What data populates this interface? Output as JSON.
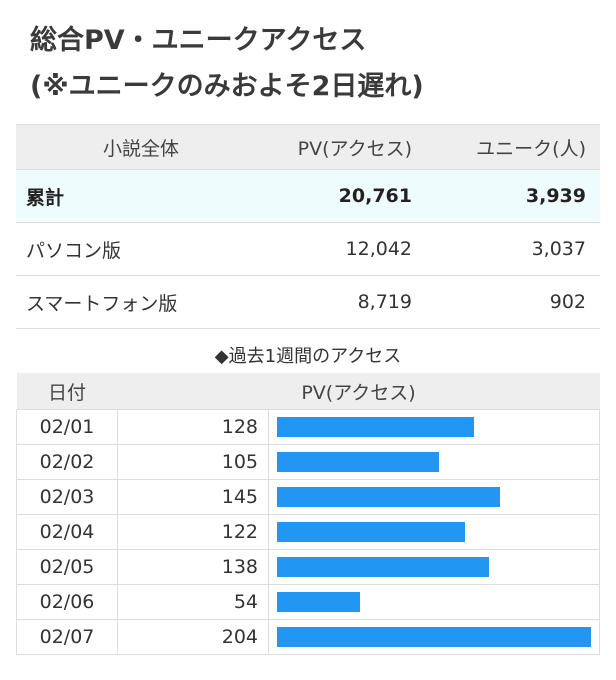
{
  "title": {
    "line1": "総合PV・ユニークアクセス",
    "line2": "(※ユニークのみおよそ2日遅れ)"
  },
  "summary": {
    "headers": [
      "小説全体",
      "PV(アクセス)",
      "ユニーク(人)"
    ],
    "rows": [
      {
        "label": "累計",
        "pv": "20,761",
        "unique": "3,939"
      },
      {
        "label": "パソコン版",
        "pv": "12,042",
        "unique": "3,037"
      },
      {
        "label": "スマートフォン版",
        "pv": "8,719",
        "unique": "902"
      }
    ]
  },
  "weekly": {
    "title": "◆過去1週間のアクセス",
    "headers": [
      "日付",
      "PV(アクセス)"
    ],
    "bar_color": "#2196f3",
    "max": 204,
    "rows": [
      {
        "date": "02/01",
        "pv": "128",
        "value": 128
      },
      {
        "date": "02/02",
        "pv": "105",
        "value": 105
      },
      {
        "date": "02/03",
        "pv": "145",
        "value": 145
      },
      {
        "date": "02/04",
        "pv": "122",
        "value": 122
      },
      {
        "date": "02/05",
        "pv": "138",
        "value": 138
      },
      {
        "date": "02/06",
        "pv": "54",
        "value": 54
      },
      {
        "date": "02/07",
        "pv": "204",
        "value": 204
      }
    ]
  }
}
